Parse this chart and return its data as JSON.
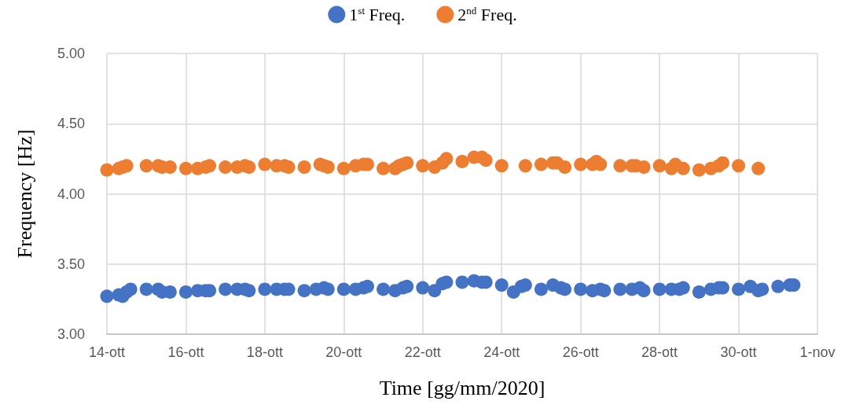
{
  "chart_data": {
    "type": "scatter",
    "xlabel": "Time [gg/mm/2020]",
    "ylabel": "Frequency [Hz]",
    "xlim": [
      14,
      32
    ],
    "ylim": [
      3,
      5
    ],
    "xticks": [
      {
        "value": 14,
        "label": "14-ott"
      },
      {
        "value": 16,
        "label": "16-ott"
      },
      {
        "value": 18,
        "label": "18-ott"
      },
      {
        "value": 20,
        "label": "20-ott"
      },
      {
        "value": 22,
        "label": "22-ott"
      },
      {
        "value": 24,
        "label": "24-ott"
      },
      {
        "value": 26,
        "label": "26-ott"
      },
      {
        "value": 28,
        "label": "28-ott"
      },
      {
        "value": 30,
        "label": "30-ott"
      },
      {
        "value": 32,
        "label": "1-nov"
      }
    ],
    "yticks": [
      {
        "value": 3,
        "label": "3.00"
      },
      {
        "value": 3.5,
        "label": "3.50"
      },
      {
        "value": 4,
        "label": "4.00"
      },
      {
        "value": 4.5,
        "label": "4.50"
      },
      {
        "value": 5,
        "label": "5.00"
      }
    ],
    "grid": true,
    "legend": "top",
    "marker": "circle",
    "series": [
      {
        "name": "1$^{st}$ Freq.",
        "color": "#4472c4",
        "x": [
          14.0,
          14.3,
          14.4,
          14.5,
          14.6,
          15.0,
          15.3,
          15.4,
          15.6,
          16.0,
          16.3,
          16.5,
          16.6,
          17.0,
          17.3,
          17.5,
          17.6,
          18.0,
          18.3,
          18.5,
          18.6,
          19.0,
          19.3,
          19.5,
          19.6,
          20.0,
          20.3,
          20.5,
          20.6,
          21.0,
          21.3,
          21.5,
          21.6,
          22.0,
          22.3,
          22.5,
          22.6,
          23.0,
          23.3,
          23.5,
          23.6,
          24.0,
          24.3,
          24.5,
          24.6,
          25.0,
          25.3,
          25.5,
          25.6,
          26.0,
          26.3,
          26.5,
          26.6,
          27.0,
          27.3,
          27.5,
          27.6,
          28.0,
          28.3,
          28.5,
          28.6,
          29.0,
          29.3,
          29.5,
          29.6,
          30.0,
          30.3,
          30.5,
          30.6,
          31.0,
          31.3,
          31.4
        ],
        "values": [
          3.27,
          3.28,
          3.27,
          3.3,
          3.32,
          3.32,
          3.32,
          3.3,
          3.3,
          3.3,
          3.31,
          3.31,
          3.31,
          3.32,
          3.32,
          3.32,
          3.31,
          3.32,
          3.32,
          3.32,
          3.32,
          3.31,
          3.32,
          3.33,
          3.32,
          3.32,
          3.32,
          3.33,
          3.34,
          3.32,
          3.31,
          3.33,
          3.34,
          3.33,
          3.31,
          3.36,
          3.37,
          3.37,
          3.38,
          3.37,
          3.37,
          3.35,
          3.3,
          3.34,
          3.35,
          3.32,
          3.35,
          3.33,
          3.32,
          3.32,
          3.31,
          3.32,
          3.31,
          3.32,
          3.32,
          3.33,
          3.31,
          3.32,
          3.32,
          3.32,
          3.33,
          3.3,
          3.32,
          3.33,
          3.33,
          3.32,
          3.34,
          3.31,
          3.32,
          3.34,
          3.35,
          3.35
        ]
      },
      {
        "name": "2$^{nd}$ Freq.",
        "color": "#ed7d31",
        "x": [
          14.0,
          14.3,
          14.4,
          14.5,
          15.0,
          15.3,
          15.4,
          15.6,
          16.0,
          16.3,
          16.5,
          16.6,
          17.0,
          17.3,
          17.5,
          17.6,
          18.0,
          18.3,
          18.5,
          18.6,
          19.0,
          19.4,
          19.5,
          19.6,
          20.0,
          20.3,
          20.5,
          20.6,
          21.0,
          21.3,
          21.4,
          21.5,
          21.6,
          22.0,
          22.3,
          22.5,
          22.6,
          23.0,
          23.3,
          23.5,
          23.6,
          24.0,
          24.6,
          25.0,
          25.3,
          25.4,
          25.6,
          26.0,
          26.3,
          26.4,
          26.5,
          27.0,
          27.3,
          27.4,
          27.6,
          28.0,
          28.3,
          28.4,
          28.6,
          29.0,
          29.3,
          29.5,
          29.6,
          30.0,
          30.5
        ],
        "values": [
          4.17,
          4.18,
          4.19,
          4.2,
          4.2,
          4.2,
          4.19,
          4.19,
          4.18,
          4.18,
          4.19,
          4.2,
          4.19,
          4.19,
          4.2,
          4.19,
          4.21,
          4.2,
          4.2,
          4.19,
          4.19,
          4.21,
          4.2,
          4.19,
          4.18,
          4.2,
          4.21,
          4.21,
          4.18,
          4.18,
          4.2,
          4.21,
          4.22,
          4.2,
          4.19,
          4.22,
          4.25,
          4.23,
          4.26,
          4.26,
          4.24,
          4.2,
          4.2,
          4.21,
          4.22,
          4.22,
          4.19,
          4.21,
          4.21,
          4.23,
          4.21,
          4.2,
          4.2,
          4.2,
          4.19,
          4.2,
          4.18,
          4.21,
          4.18,
          4.17,
          4.18,
          4.2,
          4.22,
          4.2,
          4.18
        ]
      }
    ]
  }
}
